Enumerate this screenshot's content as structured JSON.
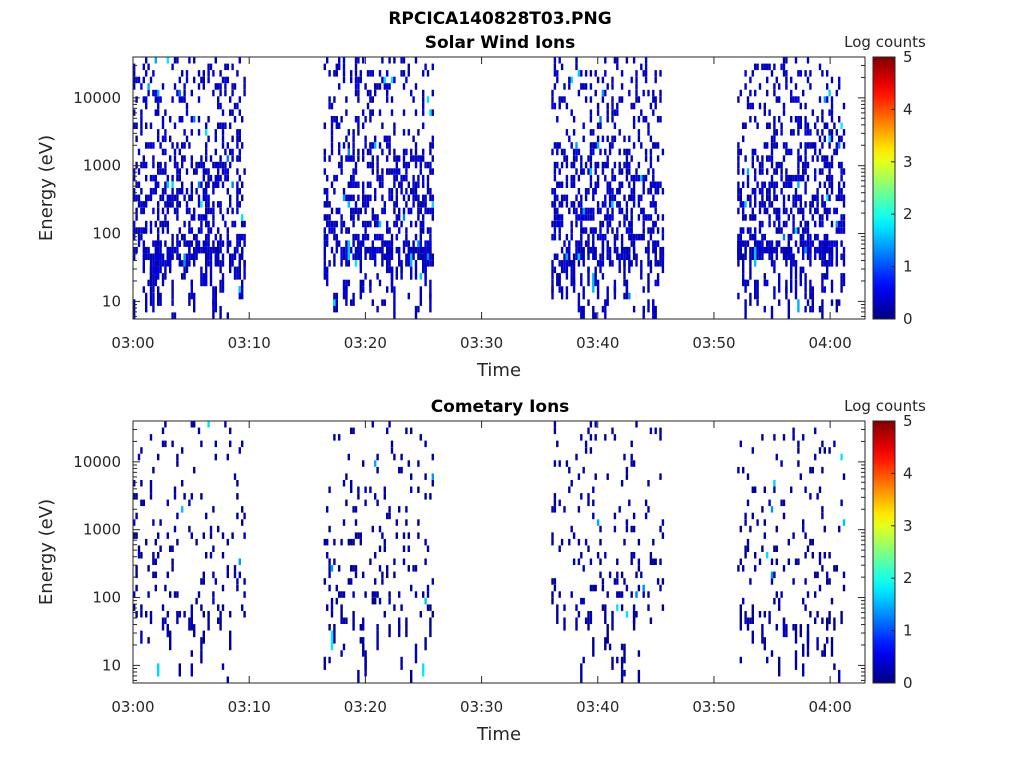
{
  "figure": {
    "title": "RPCICA140828T03.PNG"
  },
  "chart_data": [
    {
      "type": "heatmap",
      "title": "Solar Wind Ions",
      "xlabel": "Time",
      "ylabel": "Energy (eV)",
      "yscale": "log",
      "ylim": [
        5.5,
        40000
      ],
      "xlim": [
        "03:00",
        "04:03"
      ],
      "x_ticks": [
        "03:00",
        "03:10",
        "03:20",
        "03:30",
        "03:40",
        "03:50",
        "04:00"
      ],
      "y_ticks": [
        "10",
        "100",
        "1000",
        "10000"
      ],
      "y_tick_values": [
        10,
        100,
        1000,
        10000
      ],
      "colorbar": {
        "label": "Log counts",
        "ticks": [
          "0",
          "1",
          "2",
          "3",
          "4",
          "5"
        ],
        "min": 0,
        "max": 5,
        "colormap": "jet"
      },
      "measurement_intervals": [
        {
          "start": "03:00",
          "end": "03:09.7"
        },
        {
          "start": "03:16.4",
          "end": "03:25.8"
        },
        {
          "start": "03:36.0",
          "end": "03:45.6"
        },
        {
          "start": "03:52.0",
          "end": "04:01.2"
        }
      ],
      "density": 0.42,
      "typical_log_counts": 0.2
    },
    {
      "type": "heatmap",
      "title": "Cometary Ions",
      "xlabel": "Time",
      "ylabel": "Energy (eV)",
      "yscale": "log",
      "ylim": [
        5.5,
        40000
      ],
      "xlim": [
        "03:00",
        "04:03"
      ],
      "x_ticks": [
        "03:00",
        "03:10",
        "03:20",
        "03:30",
        "03:40",
        "03:50",
        "04:00"
      ],
      "y_ticks": [
        "10",
        "100",
        "1000",
        "10000"
      ],
      "y_tick_values": [
        10,
        100,
        1000,
        10000
      ],
      "colorbar": {
        "label": "Log counts",
        "ticks": [
          "0",
          "1",
          "2",
          "3",
          "4",
          "5"
        ],
        "min": 0,
        "max": 5,
        "colormap": "jet"
      },
      "measurement_intervals": [
        {
          "start": "03:00",
          "end": "03:09.7"
        },
        {
          "start": "03:16.4",
          "end": "03:25.8"
        },
        {
          "start": "03:36.0",
          "end": "03:45.6"
        },
        {
          "start": "03:52.0",
          "end": "04:01.2"
        }
      ],
      "density": 0.12,
      "typical_log_counts": 0.05
    }
  ]
}
